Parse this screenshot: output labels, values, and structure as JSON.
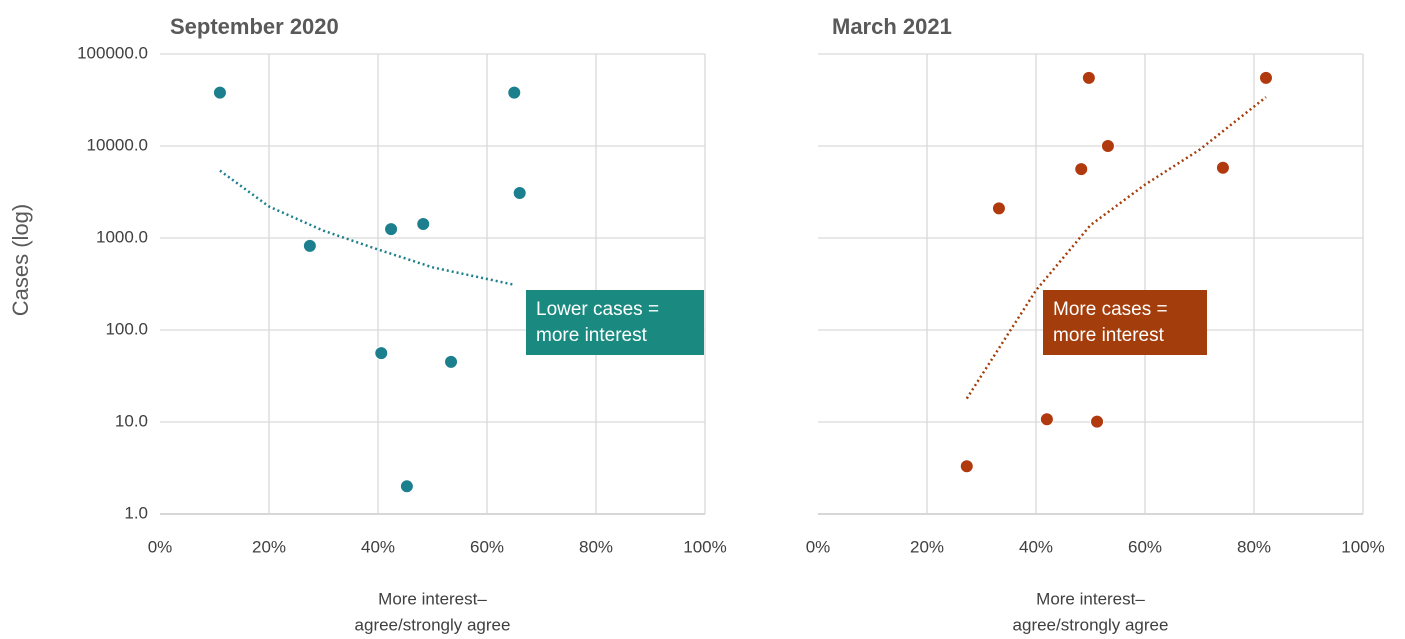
{
  "chart_data": [
    {
      "type": "scatter",
      "title": "September 2020",
      "ylabel": "Cases (log)",
      "xlabel": [
        "More interest–",
        "agree/strongly agree"
      ],
      "log_y": true,
      "grid": true,
      "color": "#1c7f8e",
      "x": [
        11,
        27.5,
        42.4,
        48.3,
        65,
        66,
        40.6,
        53.4,
        45.3
      ],
      "values": [
        38000,
        820,
        1250,
        1420,
        38000,
        3080,
        56,
        45,
        2.0
      ],
      "trendline": {
        "style": "dotted",
        "color": "#1c7f8e",
        "x": [
          11,
          20,
          30,
          40,
          50,
          65
        ],
        "values": [
          5400,
          2200,
          1200,
          750,
          480,
          310
        ]
      },
      "annotation": {
        "lines": [
          "Lower cases =",
          "more interest"
        ],
        "color": "#1a8a80"
      },
      "xlim": [
        0,
        100
      ],
      "xticks": [
        {
          "value": 0,
          "label": "0%"
        },
        {
          "value": 20,
          "label": "20%"
        },
        {
          "value": 40,
          "label": "40%"
        },
        {
          "value": 60,
          "label": "60%"
        },
        {
          "value": 80,
          "label": "80%"
        },
        {
          "value": 100,
          "label": "100%"
        }
      ],
      "ylim": [
        1,
        100000
      ],
      "yticks": [
        {
          "value": 1,
          "label": "1.0"
        },
        {
          "value": 10,
          "label": "10.0"
        },
        {
          "value": 100,
          "label": "100.0"
        },
        {
          "value": 1000,
          "label": "1000.0"
        },
        {
          "value": 10000,
          "label": "10000.0"
        },
        {
          "value": 100000,
          "label": "100000.0"
        }
      ]
    },
    {
      "type": "scatter",
      "title": "March 2021",
      "xlabel": [
        "More interest–",
        "agree/strongly agree"
      ],
      "log_y": true,
      "grid": true,
      "color": "#b03a0e",
      "x": [
        27.3,
        33.2,
        42,
        48.3,
        49.7,
        51.2,
        53.2,
        74.3,
        82.2
      ],
      "values": [
        3.3,
        2100,
        10.7,
        5600,
        55000,
        10.1,
        10000,
        5800,
        55000
      ],
      "trendline": {
        "style": "dotted",
        "color": "#a33d0b",
        "x": [
          27.3,
          40,
          50,
          60,
          70,
          82.2
        ],
        "values": [
          18,
          270,
          1380,
          3800,
          9100,
          34000
        ]
      },
      "annotation": {
        "lines": [
          "More cases =",
          "more interest"
        ],
        "color": "#a33d0b"
      },
      "xlim": [
        0,
        100
      ],
      "xticks": [
        {
          "value": 0,
          "label": "0%"
        },
        {
          "value": 20,
          "label": "20%"
        },
        {
          "value": 40,
          "label": "40%"
        },
        {
          "value": 60,
          "label": "60%"
        },
        {
          "value": 80,
          "label": "80%"
        },
        {
          "value": 100,
          "label": "100%"
        }
      ],
      "ylim": [
        1,
        100000
      ],
      "yticks": [
        1,
        10,
        100,
        1000,
        10000,
        100000
      ]
    }
  ]
}
